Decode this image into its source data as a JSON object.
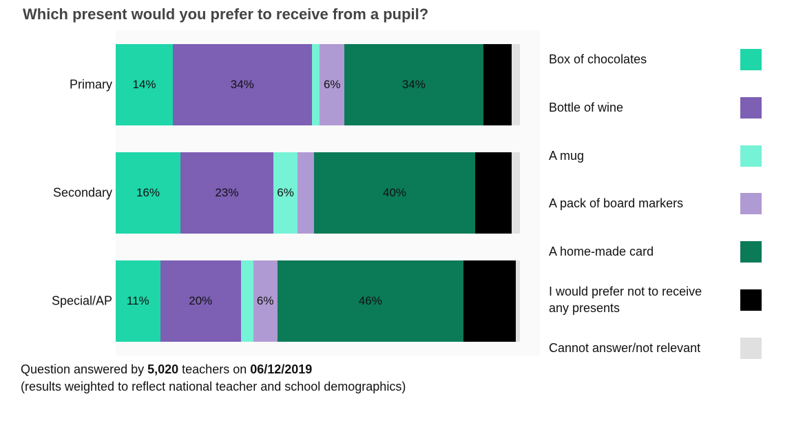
{
  "title": "Which present would you prefer to receive from a pupil?",
  "chart_data": {
    "type": "bar",
    "orientation": "horizontal",
    "stacked": true,
    "title": "Which present would you prefer to receive from a pupil?",
    "categories": [
      "Primary",
      "Secondary",
      "Special/AP"
    ],
    "series": [
      {
        "name": "Box of chocolates",
        "color": "#1ed6a8",
        "values": [
          14,
          16,
          11
        ],
        "labels": [
          "14%",
          "16%",
          "11%"
        ]
      },
      {
        "name": "Bottle of wine",
        "color": "#7d5fb4",
        "values": [
          34,
          23,
          20
        ],
        "labels": [
          "34%",
          "23%",
          "20%"
        ]
      },
      {
        "name": "A mug",
        "color": "#76f2d6",
        "values": [
          2,
          6,
          3
        ],
        "labels": [
          "",
          "6%",
          ""
        ]
      },
      {
        "name": "A pack of board markers",
        "color": "#b09ad3",
        "values": [
          6,
          4,
          6
        ],
        "labels": [
          "6%",
          "",
          "6%"
        ]
      },
      {
        "name": "A home-made card",
        "color": "#0b7a57",
        "values": [
          34,
          40,
          46
        ],
        "labels": [
          "34%",
          "40%",
          "46%"
        ]
      },
      {
        "name": "I would prefer not to receive any presents",
        "color": "#000000",
        "values": [
          7,
          9,
          13
        ],
        "labels": [
          "",
          "",
          ""
        ]
      },
      {
        "name": "Cannot answer/not relevant",
        "color": "#e0e0e0",
        "values": [
          2,
          2,
          1
        ],
        "labels": [
          "",
          "",
          ""
        ]
      }
    ],
    "xlim": [
      0,
      100
    ],
    "legend_position": "right"
  },
  "legend": [
    {
      "label": "Box of chocolates",
      "color": "#1ed6a8"
    },
    {
      "label": "Bottle of wine",
      "color": "#7d5fb4"
    },
    {
      "label": "A mug",
      "color": "#76f2d6"
    },
    {
      "label": "A pack of board markers",
      "color": "#b09ad3"
    },
    {
      "label": "A home-made card",
      "color": "#0b7a57"
    },
    {
      "label": "I would prefer not to receive any presents",
      "color": "#000000"
    },
    {
      "label": "Cannot answer/not relevant",
      "color": "#e0e0e0"
    }
  ],
  "footer": {
    "prefix": "Question answered by ",
    "count": "5,020",
    "middle": " teachers on ",
    "date": "06/12/2019",
    "note": "(results weighted to reflect national teacher and school demographics)"
  }
}
